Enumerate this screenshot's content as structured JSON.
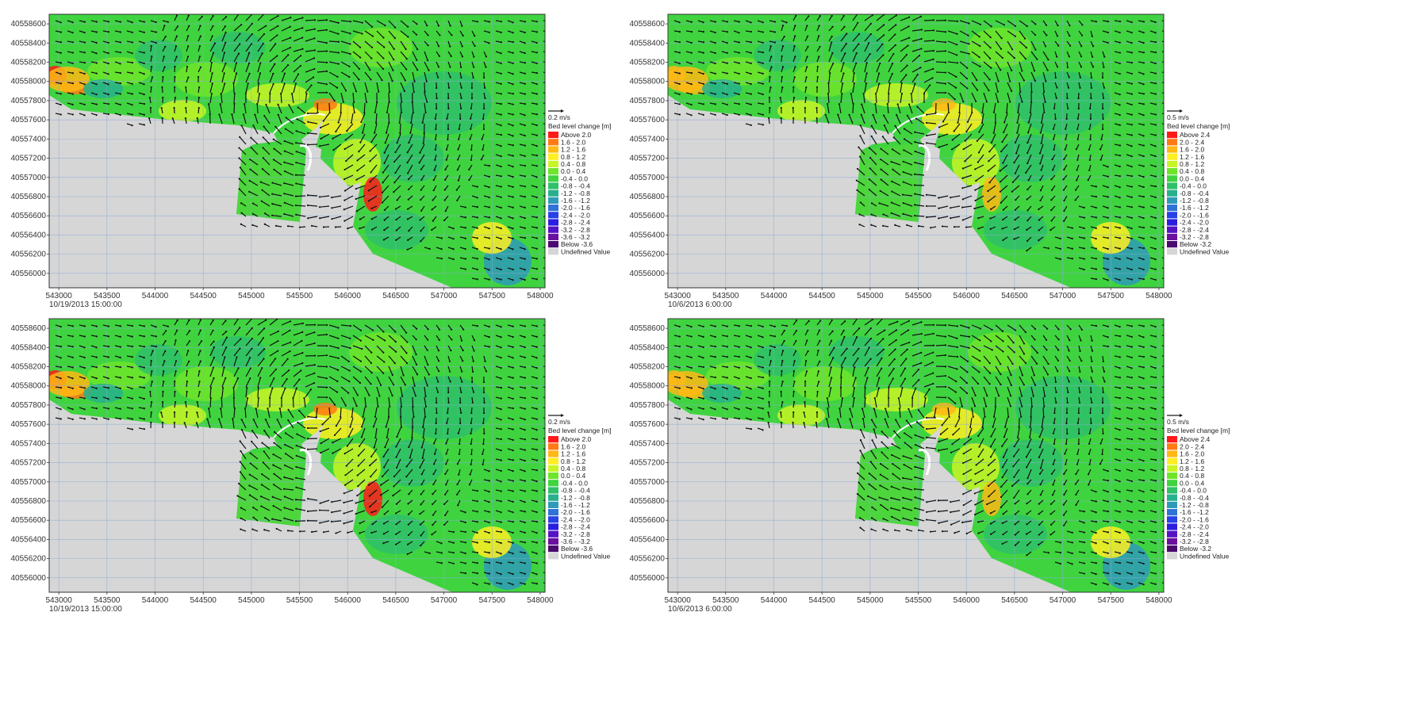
{
  "y_ticks": [
    "40558600",
    "40558400",
    "40558200",
    "40558000",
    "40557800",
    "40557600",
    "40557400",
    "40557200",
    "40557000",
    "40556800",
    "40556600",
    "40556400",
    "40556200",
    "40556000"
  ],
  "x_ticks": [
    "543000",
    "543500",
    "544000",
    "544500",
    "545000",
    "545500",
    "546000",
    "546500",
    "547000",
    "547500",
    "548000"
  ],
  "legend_title": "Bed level change [m]",
  "undefined_label": "Undefined Value",
  "colors": {
    "land": "#d6d6d6",
    "sea": "#3fd43f",
    "grid": "#8aa9d6",
    "arrow": "#111111",
    "frame": "#333333"
  },
  "panels": [
    {
      "id": "top-left",
      "timestamp": "10/19/2013 15:00:00",
      "scale_label": "0.2 m/s",
      "legend_items": [
        "Above  2.0",
        "1.6 -  2.0",
        "1.2 -  1.6",
        "0.8 -  1.2",
        "0.4 -  0.8",
        "0.0 -  0.4",
        "-0.4 -  0.0",
        "-0.8 - -0.4",
        "-1.2 - -0.8",
        "-1.6 - -1.2",
        "-2.0 - -1.6",
        "-2.4 - -2.0",
        "-2.8 - -2.4",
        "-3.2 - -2.8",
        "-3.6 - -3.2",
        "Below -3.6"
      ],
      "legend_colors": [
        "#ff1a1a",
        "#ff7a14",
        "#ffb814",
        "#ffee22",
        "#c8f526",
        "#6fe52a",
        "#3fd43f",
        "#2fc06a",
        "#27b08d",
        "#2f9ab8",
        "#2f73d6",
        "#2742e6",
        "#2a1ee0",
        "#5513c4",
        "#6a0f9e",
        "#4a0a6e"
      ]
    },
    {
      "id": "top-right",
      "timestamp": "10/6/2013 6:00:00",
      "scale_label": "0.5 m/s",
      "legend_items": [
        "Above  2.4",
        "2.0 -  2.4",
        "1.6 -  2.0",
        "1.2 -  1.6",
        "0.8 -  1.2",
        "0.4 -  0.8",
        "0.0 -  0.4",
        "-0.4 -  0.0",
        "-0.8 - -0.4",
        "-1.2 - -0.8",
        "-1.6 - -1.2",
        "-2.0 - -1.6",
        "-2.4 - -2.0",
        "-2.8 - -2.4",
        "-3.2 - -2.8",
        "Below -3.2"
      ],
      "legend_colors": [
        "#ff1a1a",
        "#ff7a14",
        "#ffb814",
        "#ffee22",
        "#c8f526",
        "#6fe52a",
        "#3fd43f",
        "#2fc06a",
        "#27b08d",
        "#2f9ab8",
        "#2f73d6",
        "#2742e6",
        "#2a1ee0",
        "#5513c4",
        "#6a0f9e",
        "#4a0a6e"
      ]
    },
    {
      "id": "bottom-left",
      "timestamp": "10/19/2013 15:00:00",
      "scale_label": "0.2 m/s",
      "legend_items": [
        "Above  2.0",
        "1.6 -  2.0",
        "1.2 -  1.6",
        "0.8 -  1.2",
        "0.4 -  0.8",
        "0.0 -  0.4",
        "-0.4 -  0.0",
        "-0.8 - -0.4",
        "-1.2 - -0.8",
        "-1.6 - -1.2",
        "-2.0 - -1.6",
        "-2.4 - -2.0",
        "-2.8 - -2.4",
        "-3.2 - -2.8",
        "-3.6 - -3.2",
        "Below -3.6"
      ],
      "legend_colors": [
        "#ff1a1a",
        "#ff7a14",
        "#ffb814",
        "#ffee22",
        "#c8f526",
        "#6fe52a",
        "#3fd43f",
        "#2fc06a",
        "#27b08d",
        "#2f9ab8",
        "#2f73d6",
        "#2742e6",
        "#2a1ee0",
        "#5513c4",
        "#6a0f9e",
        "#4a0a6e"
      ]
    },
    {
      "id": "bottom-right",
      "timestamp": "10/6/2013 6:00:00",
      "scale_label": "0.5 m/s",
      "legend_items": [
        "Above  2.4",
        "2.0 -  2.4",
        "1.6 -  2.0",
        "1.2 -  1.6",
        "0.8 -  1.2",
        "0.4 -  0.8",
        "0.0 -  0.4",
        "-0.4 -  0.0",
        "-0.8 - -0.4",
        "-1.2 - -0.8",
        "-1.6 - -1.2",
        "-2.0 - -1.6",
        "-2.4 - -2.0",
        "-2.8 - -2.4",
        "-3.2 - -2.8",
        "Below -3.2"
      ],
      "legend_colors": [
        "#ff1a1a",
        "#ff7a14",
        "#ffb814",
        "#ffee22",
        "#c8f526",
        "#6fe52a",
        "#3fd43f",
        "#2fc06a",
        "#27b08d",
        "#2f9ab8",
        "#2f73d6",
        "#2742e6",
        "#2a1ee0",
        "#5513c4",
        "#6a0f9e",
        "#4a0a6e"
      ]
    }
  ]
}
